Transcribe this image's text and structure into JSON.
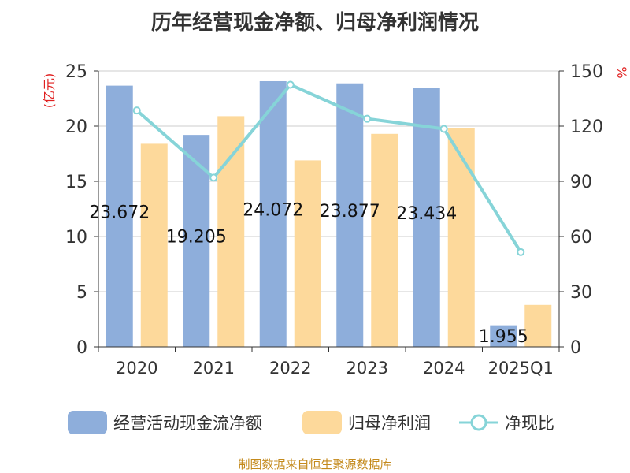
{
  "chart_data": {
    "type": "bar",
    "title": "历年经营现金净额、归母净利润情况",
    "categories": [
      "2020",
      "2021",
      "2022",
      "2023",
      "2024",
      "2025Q1"
    ],
    "series": [
      {
        "name": "经营活动现金流净额",
        "type": "bar",
        "axis": "left",
        "color": "#8eaedb",
        "values": [
          23.67,
          19.205,
          24.072,
          23.877,
          23.434,
          1.955
        ]
      },
      {
        "name": "归母净利润",
        "type": "bar",
        "axis": "left",
        "color": "#fdd99b",
        "values": [
          18.4,
          20.9,
          16.9,
          19.3,
          19.8,
          3.8
        ]
      },
      {
        "name": "净现比",
        "type": "line",
        "axis": "right",
        "color": "#86d4d8",
        "values": [
          128.5,
          92,
          142.5,
          124,
          118.5,
          51.5
        ]
      }
    ],
    "data_labels": [
      "23.672",
      "19.205",
      "24.072",
      "23.877",
      "23.434",
      "1.955"
    ],
    "y_left": {
      "label": "(亿元)",
      "ylim": [
        0,
        25
      ],
      "ticks": [
        "0",
        "5",
        "10",
        "15",
        "20",
        "25"
      ]
    },
    "y_right": {
      "label": "%",
      "ylim": [
        0,
        150
      ],
      "ticks": [
        "0",
        "30",
        "60",
        "90",
        "120",
        "150"
      ]
    },
    "grid": true,
    "legend_position": "bottom"
  },
  "source_note": "制图数据来自恒生聚源数据库"
}
